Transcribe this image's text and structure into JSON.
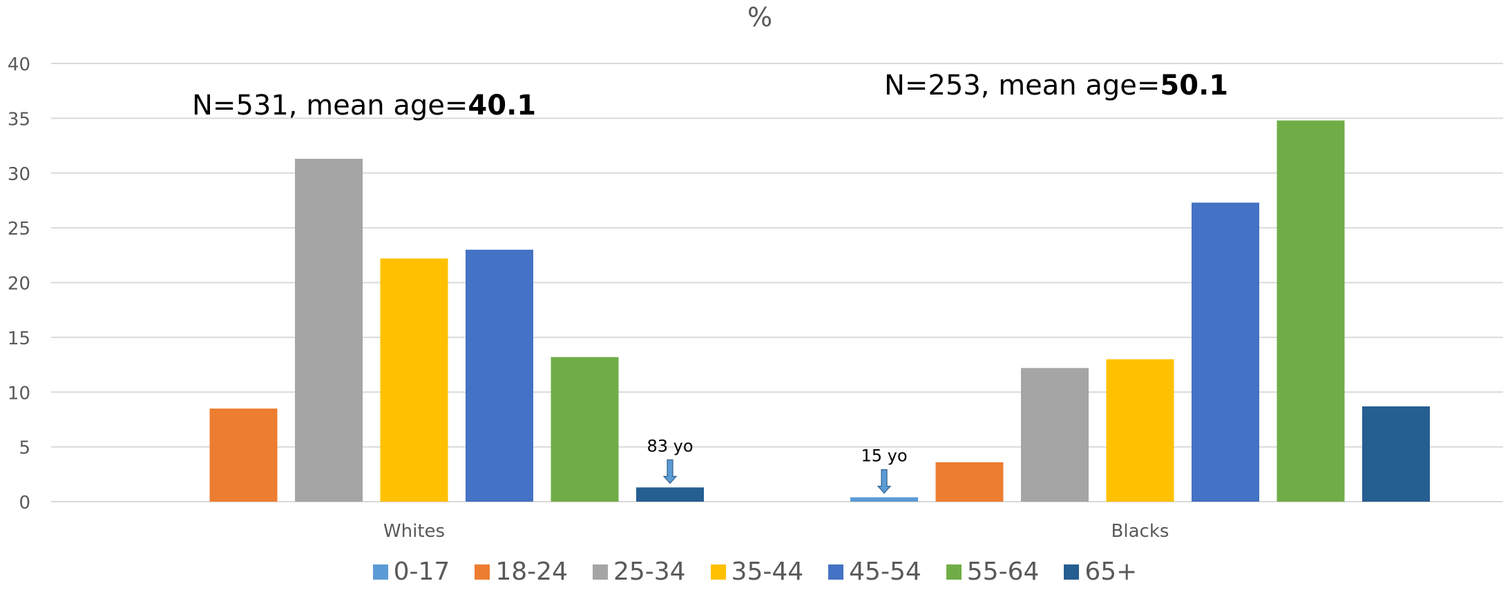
{
  "chart_data": {
    "type": "bar",
    "title": "%",
    "categories": [
      "Whites",
      "Blacks"
    ],
    "series": [
      {
        "name": "0-17",
        "color": "#5B9BD5",
        "values": [
          0,
          0.4
        ]
      },
      {
        "name": "18-24",
        "color": "#ED7D31",
        "values": [
          8.5,
          3.6
        ]
      },
      {
        "name": "25-34",
        "color": "#A5A5A5",
        "values": [
          31.3,
          12.2
        ]
      },
      {
        "name": "35-44",
        "color": "#FFC000",
        "values": [
          22.2,
          13.0
        ]
      },
      {
        "name": "45-54",
        "color": "#4472C4",
        "values": [
          23.0,
          27.3
        ]
      },
      {
        "name": "55-64",
        "color": "#70AD47",
        "values": [
          13.2,
          34.8
        ]
      },
      {
        "name": "65+",
        "color": "#255E91",
        "values": [
          1.3,
          8.7
        ]
      }
    ],
    "ylim": [
      0,
      40
    ],
    "yticks": [
      0,
      5,
      10,
      15,
      20,
      25,
      30,
      35,
      40
    ],
    "grid": true,
    "legend_position": "bottom",
    "group_annotations": [
      {
        "prefix": "N=531, mean age=",
        "value": "40.1"
      },
      {
        "prefix": "N=253, mean age=",
        "value": "50.1"
      }
    ],
    "arrow_annotations": [
      {
        "text": "83 yo",
        "category": "Whites",
        "series": "65+"
      },
      {
        "text": "15 yo",
        "category": "Blacks",
        "series": "0-17"
      }
    ]
  }
}
